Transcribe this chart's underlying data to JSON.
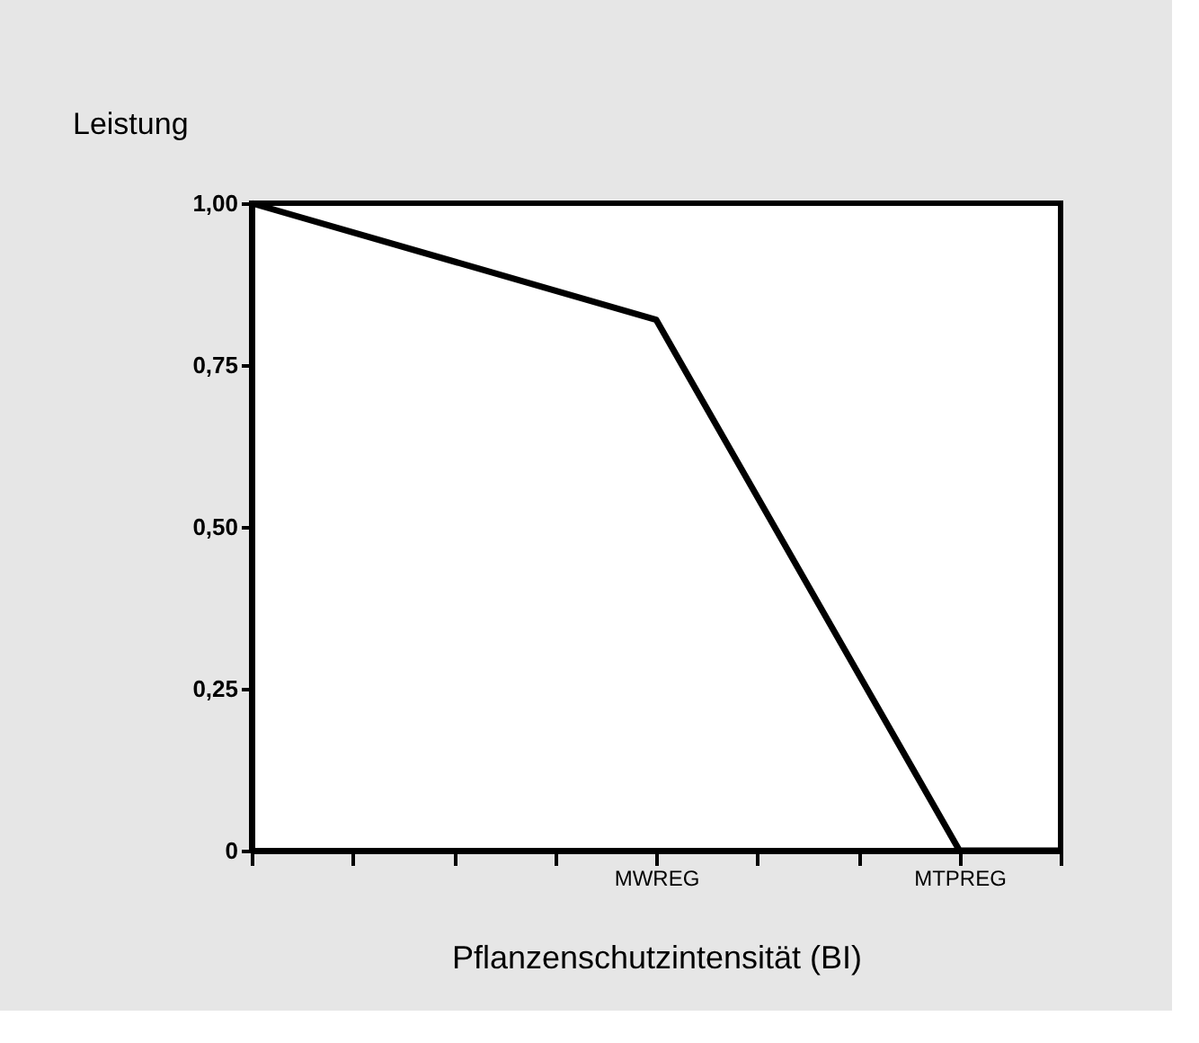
{
  "chart_data": {
    "type": "line",
    "ylabel": "Leistung",
    "xlabel": "Pflanzenschutzintensität (BI)",
    "categories": [
      null,
      null,
      null,
      null,
      "MWREG",
      null,
      null,
      "MTPREG",
      null
    ],
    "series": [
      {
        "color": "#000000",
        "values": [
          1.0,
          null,
          null,
          null,
          0.82,
          null,
          null,
          0,
          0
        ]
      }
    ],
    "ylim": [
      0,
      1
    ],
    "yticks": [
      {
        "value": 0,
        "label": "0"
      },
      {
        "value": 0.25,
        "label": "0,25"
      },
      {
        "value": 0.5,
        "label": "0,50"
      },
      {
        "value": 0.75,
        "label": "0,75"
      },
      {
        "value": 1,
        "label": "1,00"
      }
    ],
    "grid": false,
    "marker": "none",
    "line_style": "solid"
  }
}
